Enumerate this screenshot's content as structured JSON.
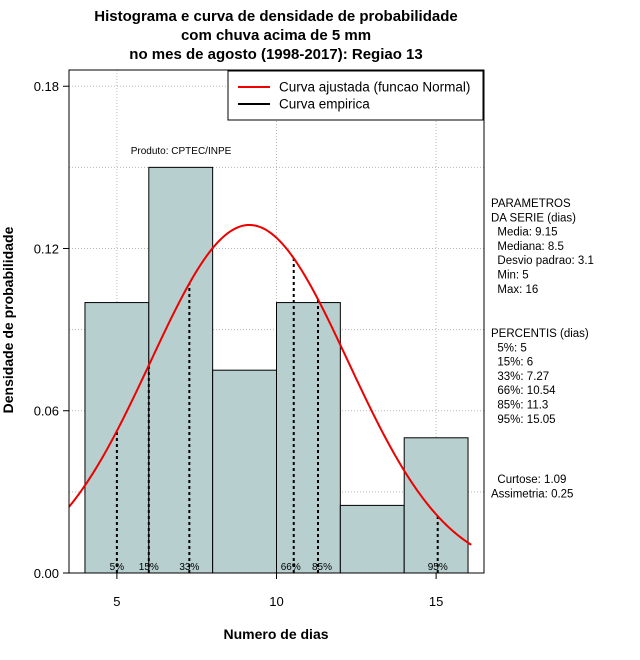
{
  "chart_data": {
    "type": "histogram",
    "title": [
      "Histograma e curva de densidade de probabilidade",
      "com chuva acima de 5 mm",
      "no mes de agosto (1998-2017): Regiao 13"
    ],
    "xlabel": "Numero de dias",
    "ylabel": "Densidade de probabilidade",
    "xlim": [
      3.5,
      16.5
    ],
    "ylim": [
      0,
      0.186
    ],
    "xticks": [
      5,
      10,
      15
    ],
    "yticks": [
      0.0,
      0.06,
      0.12,
      0.18
    ],
    "ytick_labels": [
      "0.00",
      "0.06",
      "0.12",
      "0.18"
    ],
    "grid": true,
    "bins": [
      {
        "from": 4,
        "to": 6,
        "density": 0.1
      },
      {
        "from": 6,
        "to": 8,
        "density": 0.15
      },
      {
        "from": 8,
        "to": 10,
        "density": 0.075
      },
      {
        "from": 10,
        "to": 12,
        "density": 0.1
      },
      {
        "from": 12,
        "to": 14,
        "density": 0.025
      },
      {
        "from": 14,
        "to": 16,
        "density": 0.05
      }
    ],
    "fitted_curve": {
      "name": "Curva ajustada (funcao Normal)",
      "distribution": "normal",
      "mean": 9.15,
      "sd": 3.1,
      "color": "#ee0000"
    },
    "empirical_curve": {
      "name": "Curva empirica",
      "color": "#000000"
    },
    "percentile_lines": [
      {
        "label": "5%",
        "x": 5
      },
      {
        "label": "15%",
        "x": 6
      },
      {
        "label": "33%",
        "x": 7.27
      },
      {
        "label": "66%",
        "x": 10.54
      },
      {
        "label": "85%",
        "x": 11.3
      },
      {
        "label": "95%",
        "x": 15.05
      }
    ],
    "annotation": "Produto: CPTEC/INPE",
    "legend_position": "top-right",
    "bar_color": "#b7cfcf"
  },
  "side_panel": {
    "parametros": [
      "PARAMETROS",
      "DA SERIE (dias)",
      "  Media: 9.15",
      "  Mediana: 8.5",
      "  Desvio padrao: 3.1",
      "  Min: 5",
      "  Max: 16"
    ],
    "percentis": [
      "PERCENTIS (dias)",
      "  5%: 5",
      "  15%: 6",
      "  33%: 7.27",
      "  66%: 10.54",
      "  85%: 11.3",
      "  95%: 15.05"
    ],
    "shape": [
      "  Curtose: 1.09",
      "Assimetria: 0.25"
    ]
  }
}
